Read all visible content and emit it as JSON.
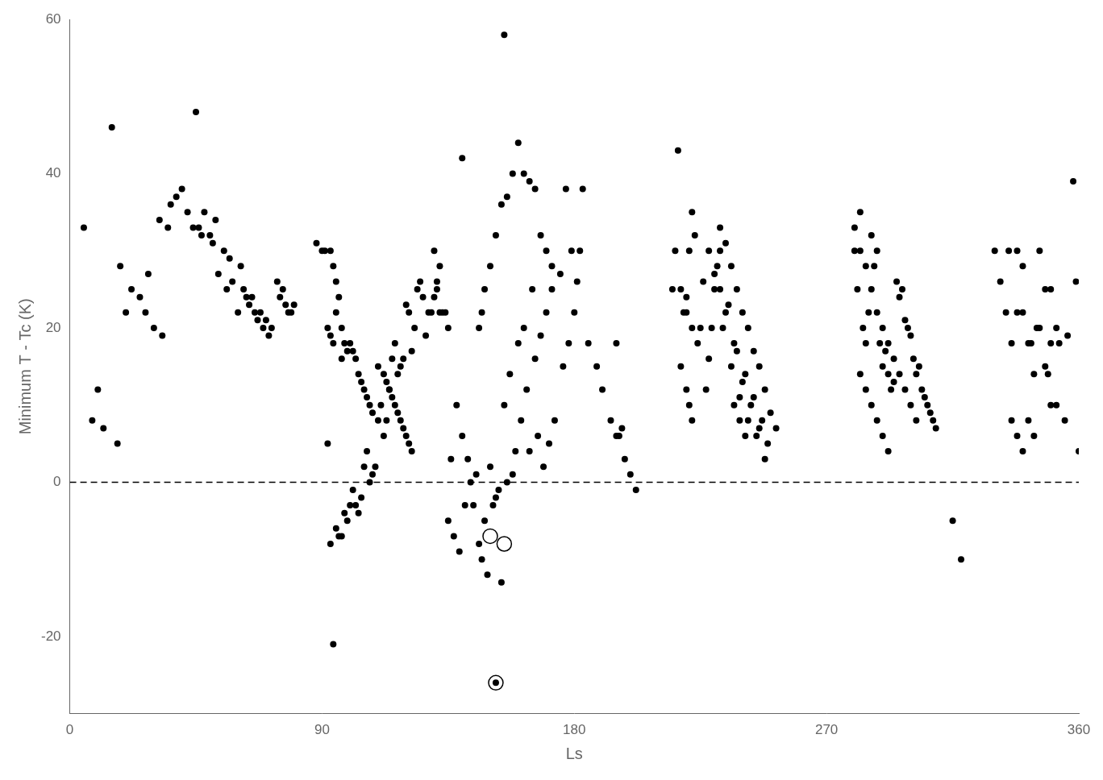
{
  "chart_data": {
    "type": "scatter",
    "xlabel": "Ls",
    "ylabel": "Minimum T - Tc (K)",
    "xlim": [
      0,
      360
    ],
    "ylim": [
      -30,
      60
    ],
    "xticks": [
      0,
      90,
      180,
      270,
      360
    ],
    "yticks": [
      -20,
      0,
      20,
      40,
      60
    ],
    "grid": false,
    "series": [
      {
        "type": "scatter",
        "marker": "dot",
        "color": "#000000",
        "x": [
          5,
          8,
          10,
          12,
          15,
          17,
          18,
          20,
          22,
          25,
          27,
          28,
          30,
          32,
          33,
          35,
          36,
          38,
          40,
          42,
          44,
          45,
          46,
          47,
          48,
          50,
          51,
          52,
          53,
          55,
          56,
          57,
          58,
          60,
          61,
          62,
          63,
          64,
          65,
          66,
          67,
          68,
          69,
          70,
          71,
          72,
          74,
          75,
          76,
          77,
          78,
          79,
          80,
          88,
          90,
          92,
          93,
          94,
          95,
          96,
          97,
          98,
          99,
          100,
          101,
          102,
          103,
          104,
          105,
          106,
          107,
          108,
          109,
          110,
          111,
          112,
          113,
          114,
          115,
          116,
          117,
          118,
          119,
          120,
          121,
          122,
          123,
          124,
          125,
          126,
          127,
          128,
          129,
          130,
          131,
          132,
          133,
          134,
          91,
          97,
          99,
          100,
          101,
          102,
          103,
          104,
          105,
          106,
          107,
          108,
          92,
          93,
          94,
          110,
          112,
          113,
          114,
          115,
          116,
          117,
          118,
          119,
          120,
          121,
          122,
          93,
          94,
          95,
          96,
          95,
          97,
          98,
          135,
          136,
          137,
          138,
          139,
          140,
          141,
          142,
          143,
          144,
          145,
          146,
          147,
          148,
          149,
          150,
          151,
          152,
          153,
          154,
          155,
          156,
          157,
          158,
          159,
          160,
          161,
          162,
          163,
          164,
          165,
          166,
          167,
          168,
          169,
          170,
          171,
          172,
          173,
          175,
          176,
          177,
          178,
          179,
          180,
          181,
          182,
          183,
          185,
          188,
          190,
          193,
          195,
          198,
          200,
          202,
          155,
          130,
          131,
          132,
          135,
          140,
          160,
          162,
          164,
          166,
          168,
          170,
          172,
          158,
          156,
          154,
          152,
          150,
          148,
          147,
          146,
          195,
          196,
          197,
          215,
          217,
          218,
          219,
          220,
          221,
          222,
          223,
          224,
          225,
          226,
          227,
          228,
          229,
          230,
          231,
          232,
          233,
          234,
          235,
          236,
          237,
          238,
          239,
          240,
          241,
          242,
          243,
          244,
          245,
          246,
          247,
          248,
          249,
          216,
          220,
          221,
          222,
          232,
          234,
          236,
          238,
          240,
          242,
          244,
          246,
          248,
          250,
          252,
          228,
          230,
          232,
          218,
          220,
          222,
          237,
          239,
          241,
          280,
          281,
          282,
          283,
          284,
          285,
          286,
          287,
          288,
          289,
          290,
          291,
          292,
          293,
          294,
          295,
          296,
          297,
          298,
          299,
          300,
          301,
          302,
          303,
          304,
          305,
          306,
          307,
          308,
          309,
          280,
          282,
          284,
          286,
          288,
          290,
          292,
          294,
          296,
          298,
          300,
          302,
          282,
          284,
          286,
          288,
          290,
          292,
          315,
          318,
          335,
          338,
          340,
          343,
          345,
          346,
          348,
          349,
          350,
          352,
          353,
          355,
          356,
          358,
          359,
          360,
          330,
          332,
          334,
          336,
          338,
          340,
          342,
          344,
          346,
          348,
          350,
          352,
          336,
          338,
          340,
          342,
          344,
          350,
          152
        ],
        "values": [
          33,
          8,
          12,
          7,
          46,
          5,
          28,
          22,
          25,
          24,
          22,
          27,
          20,
          34,
          19,
          33,
          36,
          37,
          38,
          35,
          33,
          48,
          33,
          32,
          35,
          32,
          31,
          34,
          27,
          30,
          25,
          29,
          26,
          22,
          28,
          25,
          24,
          23,
          24,
          22,
          21,
          22,
          20,
          21,
          19,
          20,
          26,
          24,
          25,
          23,
          22,
          22,
          23,
          31,
          30,
          5,
          -8,
          -21,
          -6,
          -7,
          -7,
          -4,
          -5,
          -3,
          -1,
          -3,
          -4,
          -2,
          2,
          4,
          0,
          1,
          2,
          8,
          10,
          6,
          8,
          12,
          16,
          18,
          14,
          15,
          16,
          23,
          22,
          17,
          20,
          25,
          26,
          24,
          19,
          22,
          22,
          24,
          25,
          28,
          22,
          22,
          30,
          16,
          17,
          18,
          17,
          16,
          14,
          13,
          12,
          11,
          10,
          9,
          20,
          19,
          18,
          15,
          14,
          13,
          12,
          11,
          10,
          9,
          8,
          7,
          6,
          5,
          4,
          30,
          28,
          26,
          24,
          22,
          20,
          18,
          -5,
          3,
          -7,
          10,
          -9,
          6,
          -3,
          3,
          0,
          -3,
          1,
          -8,
          -10,
          -5,
          -12,
          2,
          -3,
          -2,
          -1,
          -13,
          10,
          0,
          14,
          1,
          4,
          18,
          8,
          20,
          12,
          4,
          25,
          16,
          6,
          19,
          2,
          22,
          5,
          25,
          8,
          27,
          15,
          38,
          18,
          30,
          22,
          26,
          30,
          38,
          18,
          15,
          12,
          8,
          6,
          3,
          1,
          -1,
          58,
          30,
          26,
          22,
          20,
          42,
          44,
          40,
          39,
          38,
          32,
          30,
          28,
          40,
          37,
          36,
          32,
          28,
          25,
          22,
          20,
          18,
          6,
          7,
          25,
          43,
          15,
          22,
          24,
          30,
          35,
          32,
          18,
          20,
          26,
          12,
          16,
          20,
          25,
          28,
          30,
          20,
          22,
          23,
          15,
          18,
          17,
          11,
          13,
          14,
          8,
          10,
          11,
          6,
          7,
          8,
          3,
          5,
          30,
          12,
          10,
          8,
          33,
          31,
          28,
          25,
          22,
          20,
          17,
          15,
          12,
          9,
          7,
          30,
          27,
          25,
          25,
          22,
          20,
          10,
          8,
          6,
          30,
          25,
          35,
          20,
          18,
          22,
          32,
          28,
          30,
          18,
          15,
          17,
          14,
          12,
          13,
          26,
          24,
          25,
          21,
          20,
          19,
          16,
          14,
          15,
          12,
          11,
          10,
          9,
          8,
          7,
          33,
          30,
          28,
          25,
          22,
          20,
          18,
          16,
          14,
          12,
          10,
          8,
          14,
          12,
          10,
          8,
          6,
          4,
          -5,
          -10,
          30,
          22,
          28,
          18,
          20,
          30,
          15,
          14,
          25,
          10,
          18,
          8,
          19,
          39,
          26,
          4,
          30,
          26,
          22,
          18,
          30,
          22,
          18,
          14,
          20,
          25,
          18,
          20,
          8,
          6,
          4,
          8,
          6,
          10,
          -26
        ]
      },
      {
        "type": "scatter",
        "marker": "ring",
        "color": "#000000",
        "x": [
          150,
          155,
          152
        ],
        "values": [
          -7,
          -8,
          -26
        ]
      },
      {
        "type": "hline",
        "line_style": "dashed",
        "color": "#000000",
        "values": [
          0
        ]
      }
    ]
  }
}
